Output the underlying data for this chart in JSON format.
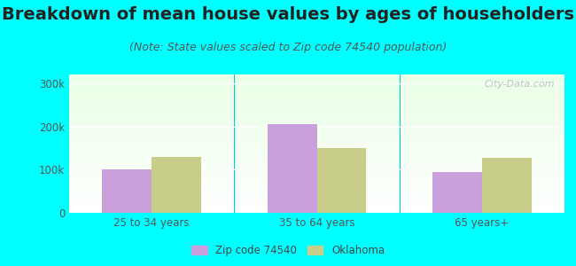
{
  "title": "Breakdown of mean house values by ages of householders",
  "subtitle": "(Note: State values scaled to Zip code 74540 population)",
  "categories": [
    "25 to 34 years",
    "35 to 64 years",
    "65 years+"
  ],
  "zip_values": [
    100000,
    205000,
    95000
  ],
  "ok_values": [
    130000,
    150000,
    127000
  ],
  "zip_color": "#c9a0dc",
  "ok_color": "#c8cd8a",
  "background_outer": "#00ffff",
  "ylim": [
    0,
    320000
  ],
  "yticks": [
    0,
    100000,
    200000,
    300000
  ],
  "ytick_labels": [
    "0",
    "100k",
    "200k",
    "300k"
  ],
  "title_fontsize": 14,
  "subtitle_fontsize": 9,
  "legend_labels": [
    "Zip code 74540",
    "Oklahoma"
  ],
  "bar_width": 0.3,
  "watermark": "City-Data.com"
}
